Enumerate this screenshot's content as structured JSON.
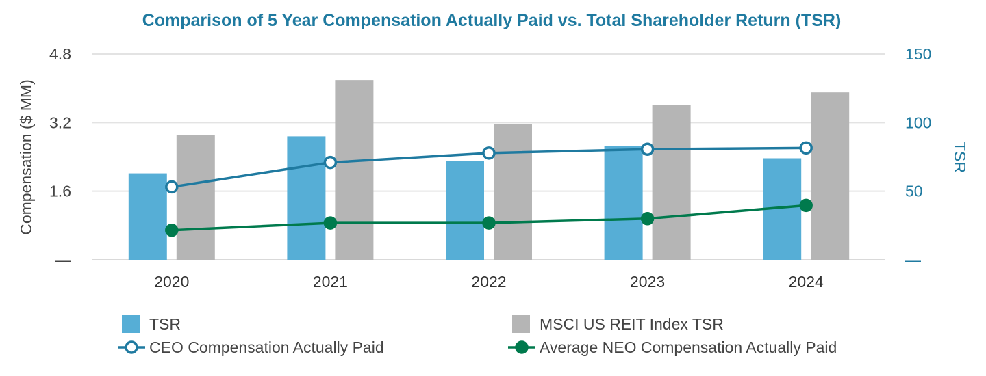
{
  "chart_data": {
    "type": "bar",
    "title": "Comparison of 5 Year Compensation Actually Paid vs. Total Shareholder Return (TSR)",
    "categories": [
      "2020",
      "2021",
      "2022",
      "2023",
      "2024"
    ],
    "y_left": {
      "label": "Compensation ($ MM)",
      "ylim": [
        0,
        4.8
      ],
      "ticks": [
        0,
        1.6,
        3.2,
        4.8
      ],
      "tick_labels": [
        "—",
        "1.6",
        "3.2",
        "4.8"
      ]
    },
    "y_right": {
      "label": "TSR",
      "ylim": [
        0,
        150
      ],
      "ticks": [
        0,
        50,
        100,
        150
      ],
      "tick_labels": [
        "—",
        "50",
        "100",
        "150"
      ]
    },
    "bar_series": [
      {
        "name": "TSR",
        "axis": "right",
        "color": "#56AED6",
        "values": [
          63,
          90,
          72,
          83,
          74
        ]
      },
      {
        "name": "MSCI US REIT Index TSR",
        "axis": "right",
        "color": "#B5B5B5",
        "values": [
          91,
          131,
          99,
          113,
          122
        ]
      }
    ],
    "line_series": [
      {
        "name": "CEO Compensation Actually Paid",
        "axis": "left",
        "color": "#1F7AA0",
        "marker": "hollow-circle",
        "values": [
          1.7,
          2.27,
          2.49,
          2.58,
          2.61
        ]
      },
      {
        "name": "Average NEO Compensation Actually Paid",
        "axis": "left",
        "color": "#007A4D",
        "marker": "filled-circle",
        "values": [
          0.69,
          0.86,
          0.86,
          0.96,
          1.27
        ]
      }
    ],
    "legend": {
      "placement": "bottom",
      "items": [
        "TSR",
        "MSCI US REIT Index TSR",
        "CEO Compensation Actually Paid",
        "Average NEO Compensation Actually Paid"
      ]
    },
    "grid": true
  },
  "colors": {
    "title": "#1F7AA0",
    "left_axis_text": "#444444",
    "right_axis_text": "#1F7AA0",
    "grid": "#E3E3E3"
  }
}
